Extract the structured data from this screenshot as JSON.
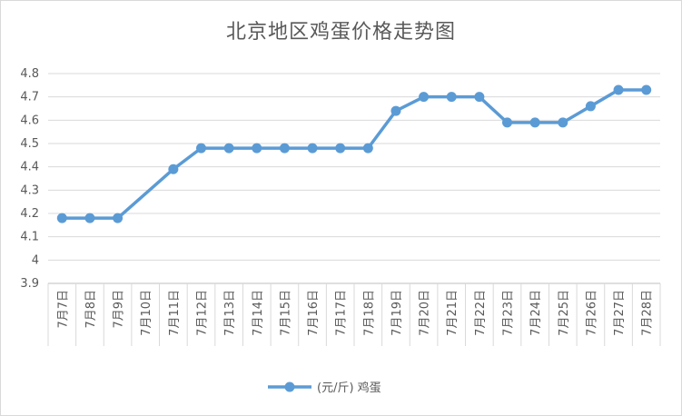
{
  "chart_data": {
    "type": "line",
    "title": "北京地区鸡蛋价格走势图",
    "categories": [
      "7月7日",
      "7月8日",
      "7月9日",
      "7月10日",
      "7月11日",
      "7月12日",
      "7月13日",
      "7月14日",
      "7月15日",
      "7月16日",
      "7月17日",
      "7月18日",
      "7月19日",
      "7月20日",
      "7月21日",
      "7月22日",
      "7月23日",
      "7月24日",
      "7月25日",
      "7月26日",
      "7月27日",
      "7月28日"
    ],
    "series": [
      {
        "name": "(元/斤) 鸡蛋",
        "color": "#5b9bd5",
        "values": [
          4.18,
          4.18,
          4.18,
          null,
          4.39,
          4.48,
          4.48,
          4.48,
          4.48,
          4.48,
          4.48,
          4.48,
          4.64,
          4.7,
          4.7,
          4.7,
          4.59,
          4.59,
          4.59,
          4.66,
          4.73,
          4.73
        ]
      }
    ],
    "yticks": [
      "3.9",
      "4",
      "4.1",
      "4.2",
      "4.3",
      "4.4",
      "4.5",
      "4.6",
      "4.7",
      "4.8"
    ],
    "ylim": [
      3.9,
      4.8
    ],
    "grid": true,
    "legend_position": "bottom"
  }
}
